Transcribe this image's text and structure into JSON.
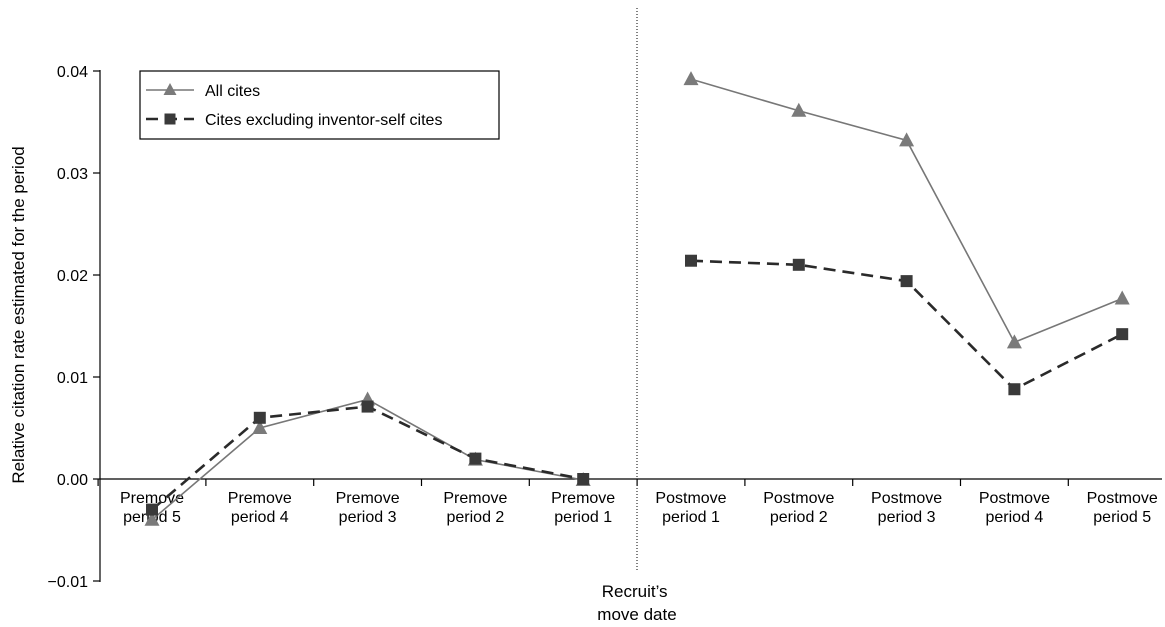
{
  "chart_data": {
    "type": "line",
    "ylabel": "Relative citation rate estimated for the period",
    "ylim": [
      -0.01,
      0.04
    ],
    "yticks": [
      -0.01,
      0.0,
      0.01,
      0.02,
      0.03,
      0.04
    ],
    "ytick_labels": [
      "−0.01",
      "0.00",
      "0.01",
      "0.02",
      "0.03",
      "0.04"
    ],
    "categories": [
      [
        "Premove",
        "period 5"
      ],
      [
        "Premove",
        "period 4"
      ],
      [
        "Premove",
        "period 3"
      ],
      [
        "Premove",
        "period 2"
      ],
      [
        "Premove",
        "period 1"
      ],
      [
        "Postmove",
        "period 1"
      ],
      [
        "Postmove",
        "period 2"
      ],
      [
        "Postmove",
        "period 3"
      ],
      [
        "Postmove",
        "period 4"
      ],
      [
        "Postmove",
        "period 5"
      ]
    ],
    "divider_label": [
      "Recruit’s",
      "move date"
    ],
    "legend_position": "top-left",
    "grid": false,
    "series": [
      {
        "name": "All cites",
        "marker": "triangle",
        "dash": "solid",
        "line_color": "#777777",
        "marker_color": "#7a7a7a",
        "segments": [
          [
            [
              0,
              -0.004
            ],
            [
              1,
              0.005
            ],
            [
              2,
              0.0078
            ],
            [
              3,
              0.0019
            ],
            [
              4,
              -0.0001
            ]
          ],
          [
            [
              5,
              0.0392
            ],
            [
              6,
              0.0361
            ],
            [
              7,
              0.0332
            ],
            [
              8,
              0.0134
            ],
            [
              9,
              0.0177
            ]
          ]
        ]
      },
      {
        "name": "Cites excluding inventor-self cites",
        "marker": "square",
        "dash": "dashed",
        "line_color": "#2a2a2a",
        "marker_color": "#3a3a3a",
        "segments": [
          [
            [
              0,
              -0.003
            ],
            [
              1,
              0.006
            ],
            [
              2,
              0.0071
            ],
            [
              3,
              0.002
            ],
            [
              4,
              0.0
            ]
          ],
          [
            [
              5,
              0.0214
            ],
            [
              6,
              0.021
            ],
            [
              7,
              0.0194
            ],
            [
              8,
              0.0088
            ],
            [
              9,
              0.0142
            ]
          ]
        ]
      }
    ]
  }
}
